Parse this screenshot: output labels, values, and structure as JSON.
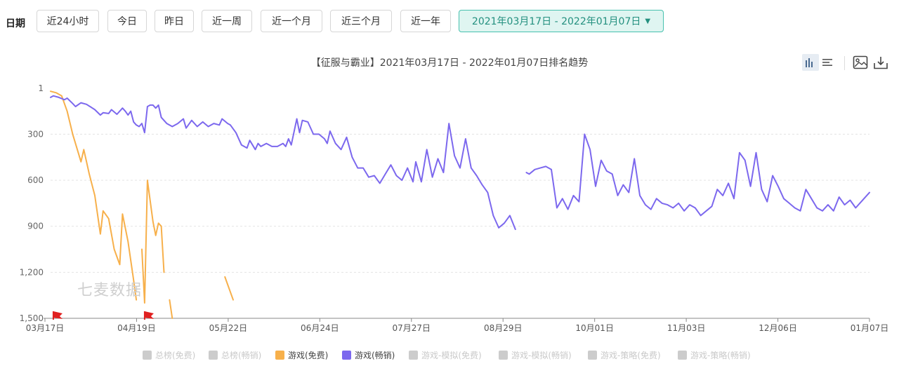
{
  "filters": {
    "label": "日期",
    "options": [
      "近24小时",
      "今日",
      "昨日",
      "近一周",
      "近一个月",
      "近三个月",
      "近一年"
    ],
    "range_value": "2021年03月17日 - 2022年01月07日",
    "accent": "#47c1ae"
  },
  "icons": [
    "bar-chart-icon",
    "list-icon",
    "image-download-icon",
    "download-icon"
  ],
  "watermark": "七麦数据",
  "chart_data": {
    "type": "line",
    "title": "【征服与霸业】2021年03月17日 - 2022年01月07日排名趋势",
    "xlabel": "",
    "ylabel": "",
    "y_inverted": true,
    "ylim": [
      1,
      1500
    ],
    "yticks": [
      1,
      300,
      600,
      900,
      1200,
      1500
    ],
    "ytick_labels": [
      "1",
      "300",
      "600",
      "900",
      "1,200",
      "1,500"
    ],
    "x_start": "2021-03-17",
    "x_end": "2022-01-07",
    "xtick_labels": [
      "03月17日",
      "04月19日",
      "05月22日",
      "06月24日",
      "07月27日",
      "08月29日",
      "10月01日",
      "11月03日",
      "12月06日",
      "01月07日"
    ],
    "grid": true,
    "legend_position": "bottom",
    "legend": [
      {
        "name": "总榜(免费)",
        "color": "#cccccc",
        "active": false
      },
      {
        "name": "总榜(畅销)",
        "color": "#cccccc",
        "active": false
      },
      {
        "name": "游戏(免费)",
        "color": "#f7b04b",
        "active": true
      },
      {
        "name": "游戏(畅销)",
        "color": "#7c68ee",
        "active": true
      },
      {
        "name": "游戏-模拟(免费)",
        "color": "#cccccc",
        "active": false
      },
      {
        "name": "游戏-模拟(畅销)",
        "color": "#cccccc",
        "active": false
      },
      {
        "name": "游戏-策略(免费)",
        "color": "#cccccc",
        "active": false
      },
      {
        "name": "游戏-策略(畅销)",
        "color": "#cccccc",
        "active": false
      }
    ],
    "markers": [
      {
        "date": "2021-03-18",
        "type": "flag"
      },
      {
        "date": "2021-04-20",
        "type": "flag"
      }
    ],
    "series": [
      {
        "name": "游戏(畅销)",
        "color": "#7c68ee",
        "segments": [
          [
            [
              "2021-03-17",
              60
            ],
            [
              "2021-03-18",
              50
            ],
            [
              "2021-03-20",
              60
            ],
            [
              "2021-03-22",
              75
            ],
            [
              "2021-03-23",
              65
            ],
            [
              "2021-03-25",
              100
            ],
            [
              "2021-03-26",
              120
            ],
            [
              "2021-03-28",
              95
            ],
            [
              "2021-03-30",
              105
            ],
            [
              "2021-04-02",
              140
            ],
            [
              "2021-04-04",
              175
            ],
            [
              "2021-04-05",
              160
            ],
            [
              "2021-04-07",
              165
            ],
            [
              "2021-04-08",
              140
            ],
            [
              "2021-04-10",
              170
            ],
            [
              "2021-04-12",
              130
            ],
            [
              "2021-04-13",
              150
            ],
            [
              "2021-04-14",
              175
            ],
            [
              "2021-04-15",
              150
            ],
            [
              "2021-04-16",
              220
            ],
            [
              "2021-04-17",
              240
            ],
            [
              "2021-04-18",
              250
            ],
            [
              "2021-04-19",
              230
            ],
            [
              "2021-04-20",
              290
            ],
            [
              "2021-04-21",
              120
            ],
            [
              "2021-04-22",
              110
            ],
            [
              "2021-04-23",
              110
            ],
            [
              "2021-04-24",
              130
            ],
            [
              "2021-04-25",
              110
            ],
            [
              "2021-04-26",
              190
            ],
            [
              "2021-04-28",
              230
            ],
            [
              "2021-04-30",
              250
            ],
            [
              "2021-05-02",
              230
            ],
            [
              "2021-05-04",
              200
            ],
            [
              "2021-05-05",
              260
            ],
            [
              "2021-05-07",
              210
            ],
            [
              "2021-05-09",
              250
            ],
            [
              "2021-05-11",
              220
            ],
            [
              "2021-05-13",
              250
            ],
            [
              "2021-05-15",
              230
            ],
            [
              "2021-05-17",
              240
            ],
            [
              "2021-05-18",
              200
            ],
            [
              "2021-05-20",
              230
            ],
            [
              "2021-05-21",
              240
            ],
            [
              "2021-05-23",
              290
            ],
            [
              "2021-05-25",
              370
            ],
            [
              "2021-05-27",
              390
            ],
            [
              "2021-05-28",
              340
            ],
            [
              "2021-05-30",
              400
            ],
            [
              "2021-05-31",
              360
            ],
            [
              "2021-06-01",
              380
            ],
            [
              "2021-06-03",
              360
            ],
            [
              "2021-06-05",
              380
            ],
            [
              "2021-06-07",
              380
            ],
            [
              "2021-06-09",
              360
            ],
            [
              "2021-06-10",
              380
            ],
            [
              "2021-06-11",
              330
            ],
            [
              "2021-06-12",
              370
            ],
            [
              "2021-06-14",
              200
            ],
            [
              "2021-06-15",
              290
            ],
            [
              "2021-06-16",
              210
            ],
            [
              "2021-06-18",
              220
            ],
            [
              "2021-06-20",
              300
            ],
            [
              "2021-06-22",
              300
            ],
            [
              "2021-06-24",
              330
            ],
            [
              "2021-06-25",
              360
            ],
            [
              "2021-06-26",
              280
            ],
            [
              "2021-06-28",
              360
            ],
            [
              "2021-06-30",
              400
            ],
            [
              "2021-07-02",
              320
            ],
            [
              "2021-07-04",
              450
            ],
            [
              "2021-07-06",
              520
            ],
            [
              "2021-07-08",
              520
            ],
            [
              "2021-07-10",
              580
            ],
            [
              "2021-07-12",
              570
            ],
            [
              "2021-07-14",
              620
            ],
            [
              "2021-07-16",
              560
            ],
            [
              "2021-07-18",
              500
            ],
            [
              "2021-07-20",
              570
            ],
            [
              "2021-07-22",
              600
            ],
            [
              "2021-07-24",
              520
            ],
            [
              "2021-07-26",
              610
            ],
            [
              "2021-07-27",
              480
            ],
            [
              "2021-07-29",
              610
            ],
            [
              "2021-07-31",
              400
            ],
            [
              "2021-08-02",
              580
            ],
            [
              "2021-08-04",
              460
            ],
            [
              "2021-08-06",
              550
            ],
            [
              "2021-08-08",
              230
            ],
            [
              "2021-08-10",
              440
            ],
            [
              "2021-08-12",
              520
            ],
            [
              "2021-08-14",
              330
            ],
            [
              "2021-08-16",
              520
            ],
            [
              "2021-08-18",
              570
            ],
            [
              "2021-08-20",
              630
            ],
            [
              "2021-08-22",
              680
            ],
            [
              "2021-08-24",
              830
            ],
            [
              "2021-08-26",
              910
            ],
            [
              "2021-08-28",
              880
            ],
            [
              "2021-08-30",
              830
            ],
            [
              "2021-09-01",
              920
            ]
          ],
          [
            [
              "2021-09-05",
              550
            ],
            [
              "2021-09-06",
              560
            ],
            [
              "2021-09-08",
              530
            ],
            [
              "2021-09-10",
              520
            ],
            [
              "2021-09-12",
              510
            ],
            [
              "2021-09-14",
              530
            ],
            [
              "2021-09-16",
              780
            ],
            [
              "2021-09-18",
              720
            ],
            [
              "2021-09-20",
              790
            ],
            [
              "2021-09-22",
              700
            ],
            [
              "2021-09-24",
              740
            ],
            [
              "2021-09-26",
              300
            ],
            [
              "2021-09-28",
              400
            ],
            [
              "2021-09-30",
              640
            ],
            [
              "2021-10-02",
              470
            ],
            [
              "2021-10-04",
              540
            ],
            [
              "2021-10-06",
              560
            ],
            [
              "2021-10-08",
              700
            ],
            [
              "2021-10-10",
              630
            ],
            [
              "2021-10-12",
              680
            ],
            [
              "2021-10-14",
              460
            ],
            [
              "2021-10-16",
              700
            ],
            [
              "2021-10-18",
              760
            ],
            [
              "2021-10-20",
              790
            ],
            [
              "2021-10-22",
              720
            ],
            [
              "2021-10-24",
              750
            ],
            [
              "2021-10-26",
              760
            ],
            [
              "2021-10-28",
              780
            ],
            [
              "2021-10-30",
              750
            ],
            [
              "2021-11-01",
              800
            ],
            [
              "2021-11-03",
              760
            ],
            [
              "2021-11-05",
              780
            ],
            [
              "2021-11-07",
              830
            ],
            [
              "2021-11-09",
              800
            ],
            [
              "2021-11-11",
              770
            ],
            [
              "2021-11-13",
              660
            ],
            [
              "2021-11-15",
              700
            ],
            [
              "2021-11-17",
              620
            ],
            [
              "2021-11-19",
              720
            ],
            [
              "2021-11-21",
              420
            ],
            [
              "2021-11-23",
              470
            ],
            [
              "2021-11-25",
              640
            ],
            [
              "2021-11-27",
              420
            ],
            [
              "2021-11-29",
              660
            ],
            [
              "2021-12-01",
              740
            ],
            [
              "2021-12-03",
              570
            ],
            [
              "2021-12-05",
              640
            ],
            [
              "2021-12-07",
              720
            ],
            [
              "2021-12-09",
              750
            ],
            [
              "2021-12-11",
              780
            ],
            [
              "2021-12-13",
              800
            ],
            [
              "2021-12-15",
              660
            ],
            [
              "2021-12-17",
              720
            ],
            [
              "2021-12-19",
              780
            ],
            [
              "2021-12-21",
              800
            ],
            [
              "2021-12-23",
              760
            ],
            [
              "2021-12-25",
              800
            ],
            [
              "2021-12-27",
              710
            ],
            [
              "2021-12-29",
              760
            ],
            [
              "2021-12-31",
              730
            ],
            [
              "2022-01-02",
              780
            ],
            [
              "2022-01-04",
              740
            ],
            [
              "2022-01-07",
              680
            ]
          ]
        ]
      },
      {
        "name": "游戏(免费)",
        "color": "#f7b04b",
        "segments": [
          [
            [
              "2021-03-17",
              20
            ],
            [
              "2021-03-19",
              30
            ],
            [
              "2021-03-21",
              50
            ],
            [
              "2021-03-23",
              150
            ],
            [
              "2021-03-25",
              300
            ],
            [
              "2021-03-27",
              420
            ],
            [
              "2021-03-28",
              480
            ],
            [
              "2021-03-29",
              400
            ],
            [
              "2021-03-31",
              560
            ],
            [
              "2021-04-02",
              700
            ],
            [
              "2021-04-04",
              950
            ],
            [
              "2021-04-05",
              800
            ],
            [
              "2021-04-07",
              850
            ],
            [
              "2021-04-09",
              1050
            ],
            [
              "2021-04-11",
              1150
            ],
            [
              "2021-04-12",
              820
            ],
            [
              "2021-04-14",
              1000
            ],
            [
              "2021-04-16",
              1250
            ],
            [
              "2021-04-17",
              1380
            ]
          ],
          [
            [
              "2021-04-19",
              1050
            ],
            [
              "2021-04-20",
              1400
            ],
            [
              "2021-04-21",
              600
            ],
            [
              "2021-04-23",
              870
            ],
            [
              "2021-04-24",
              960
            ],
            [
              "2021-04-25",
              880
            ],
            [
              "2021-04-26",
              900
            ],
            [
              "2021-04-27",
              1200
            ]
          ],
          [
            [
              "2021-04-29",
              1380
            ],
            [
              "2021-04-30",
              1500
            ]
          ],
          [
            [
              "2021-05-19",
              1230
            ],
            [
              "2021-05-22",
              1380
            ]
          ]
        ]
      }
    ]
  }
}
